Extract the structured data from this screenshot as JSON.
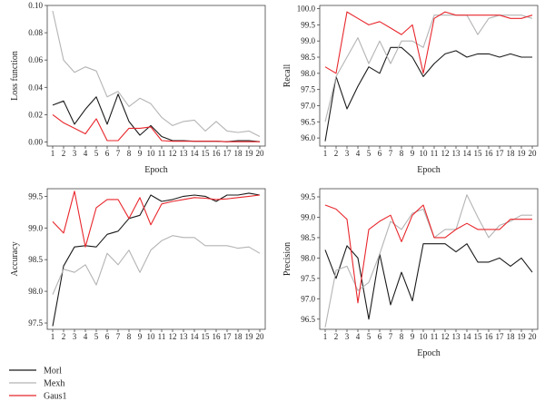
{
  "legend": [
    {
      "name": "Morl",
      "color": "#1a1a1a"
    },
    {
      "name": "Mexh",
      "color": "#b4b4b4"
    },
    {
      "name": "Gaus1",
      "color": "#e8262b"
    }
  ],
  "chart_data": [
    {
      "type": "line",
      "xlabel": "Epoch",
      "ylabel": "Loss function",
      "x": [
        1,
        2,
        3,
        4,
        5,
        6,
        7,
        8,
        9,
        10,
        11,
        12,
        13,
        14,
        15,
        16,
        17,
        18,
        19,
        20
      ],
      "xlim": [
        0.5,
        20.5
      ],
      "ylim": [
        -0.003,
        0.1
      ],
      "yticks": [
        0.0,
        0.02,
        0.04,
        0.06,
        0.08,
        0.1
      ],
      "ytick_labels": [
        "0.00",
        "0.02",
        "0.04",
        "0.06",
        "0.08",
        "0.10"
      ],
      "series": [
        {
          "name": "Morl",
          "values": [
            0.027,
            0.03,
            0.013,
            0.024,
            0.033,
            0.013,
            0.035,
            0.015,
            0.005,
            0.012,
            0.004,
            0.001,
            0.001,
            0.0005,
            0.0005,
            0.0005,
            0.0002,
            0.001,
            0.001,
            0.0002
          ]
        },
        {
          "name": "Mexh",
          "values": [
            0.096,
            0.06,
            0.051,
            0.055,
            0.052,
            0.033,
            0.037,
            0.026,
            0.032,
            0.028,
            0.018,
            0.012,
            0.015,
            0.016,
            0.008,
            0.015,
            0.008,
            0.007,
            0.008,
            0.004
          ]
        },
        {
          "name": "Gaus1",
          "values": [
            0.02,
            0.014,
            0.01,
            0.006,
            0.017,
            0.001,
            0.001,
            0.01,
            0.01,
            0.011,
            0.001,
            0.0005,
            0.0005,
            0.0005,
            0.0005,
            0.0005,
            0.0002,
            0.0002,
            0.0002,
            0.0002
          ]
        }
      ]
    },
    {
      "type": "line",
      "xlabel": "Epoch",
      "ylabel": "Recall",
      "x": [
        1,
        2,
        3,
        4,
        5,
        6,
        7,
        8,
        9,
        10,
        11,
        12,
        13,
        14,
        15,
        16,
        17,
        18,
        19,
        20
      ],
      "xlim": [
        0.5,
        20.5
      ],
      "ylim": [
        95.75,
        100.1
      ],
      "yticks": [
        96.0,
        96.5,
        97.0,
        97.5,
        98.0,
        98.5,
        99.0,
        99.5,
        100.0
      ],
      "ytick_labels": [
        "96.0",
        "96.5",
        "97.0",
        "97.5",
        "98.0",
        "98.5",
        "99.0",
        "99.5",
        "100.0"
      ],
      "series": [
        {
          "name": "Morl",
          "values": [
            95.9,
            97.9,
            96.9,
            97.6,
            98.2,
            98.0,
            98.8,
            98.8,
            98.5,
            97.9,
            98.3,
            98.6,
            98.7,
            98.5,
            98.6,
            98.6,
            98.5,
            98.6,
            98.5,
            98.5
          ]
        },
        {
          "name": "Mexh",
          "values": [
            96.5,
            97.9,
            98.5,
            99.1,
            98.3,
            99.0,
            98.3,
            99.0,
            99.0,
            98.8,
            99.8,
            99.8,
            99.8,
            99.8,
            99.2,
            99.7,
            99.8,
            99.8,
            99.8,
            99.7
          ]
        },
        {
          "name": "Gaus1",
          "values": [
            98.2,
            98.0,
            99.9,
            99.7,
            99.5,
            99.6,
            99.4,
            99.2,
            99.5,
            98.0,
            99.7,
            99.9,
            99.8,
            99.8,
            99.8,
            99.8,
            99.8,
            99.7,
            99.7,
            99.8
          ]
        }
      ]
    },
    {
      "type": "line",
      "xlabel": "",
      "ylabel": "Accuracy",
      "x": [
        1,
        2,
        3,
        4,
        5,
        6,
        7,
        8,
        9,
        10,
        11,
        12,
        13,
        14,
        15,
        16,
        17,
        18,
        19,
        20
      ],
      "xlim": [
        0.5,
        20.5
      ],
      "ylim": [
        97.4,
        99.62
      ],
      "yticks": [
        97.5,
        98.0,
        98.5,
        99.0,
        99.5
      ],
      "ytick_labels": [
        "97.5",
        "98.0",
        "98.5",
        "99.0",
        "99.5"
      ],
      "series": [
        {
          "name": "Morl",
          "values": [
            97.45,
            98.4,
            98.7,
            98.72,
            98.7,
            98.9,
            98.95,
            99.15,
            99.2,
            99.52,
            99.42,
            99.45,
            99.5,
            99.52,
            99.5,
            99.42,
            99.52,
            99.52,
            99.55,
            99.52
          ]
        },
        {
          "name": "Mexh",
          "values": [
            97.95,
            98.35,
            98.3,
            98.42,
            98.1,
            98.6,
            98.42,
            98.65,
            98.3,
            98.65,
            98.8,
            98.88,
            98.85,
            98.85,
            98.72,
            98.72,
            98.72,
            98.68,
            98.7,
            98.6
          ]
        },
        {
          "name": "Gaus1",
          "values": [
            99.1,
            98.92,
            99.58,
            98.7,
            99.32,
            99.45,
            99.45,
            99.15,
            99.48,
            99.05,
            99.38,
            99.42,
            99.45,
            99.48,
            99.47,
            99.45,
            99.46,
            99.48,
            99.5,
            99.52
          ]
        }
      ]
    },
    {
      "type": "line",
      "xlabel": "Epoch",
      "ylabel": "Precision",
      "x": [
        1,
        2,
        3,
        4,
        5,
        6,
        7,
        8,
        9,
        10,
        11,
        12,
        13,
        14,
        15,
        16,
        17,
        18,
        19,
        20
      ],
      "xlim": [
        0.5,
        20.5
      ],
      "ylim": [
        96.25,
        99.7
      ],
      "yticks": [
        96.5,
        97.0,
        97.5,
        98.0,
        98.5,
        99.0,
        99.5
      ],
      "ytick_labels": [
        "96.5",
        "97.0",
        "97.5",
        "98.0",
        "98.5",
        "99.0",
        "99.5"
      ],
      "series": [
        {
          "name": "Morl",
          "values": [
            98.2,
            97.5,
            98.3,
            98.0,
            96.5,
            98.1,
            96.85,
            97.65,
            96.95,
            98.35,
            98.35,
            98.35,
            98.15,
            98.35,
            97.9,
            97.9,
            98.0,
            97.8,
            98.0,
            97.65
          ]
        },
        {
          "name": "Mexh",
          "values": [
            96.3,
            97.7,
            97.8,
            97.2,
            97.4,
            98.1,
            98.9,
            98.7,
            99.1,
            99.2,
            98.5,
            98.7,
            98.7,
            99.55,
            99.0,
            98.5,
            98.8,
            98.9,
            99.05,
            99.05
          ]
        },
        {
          "name": "Gaus1",
          "values": [
            99.3,
            99.2,
            98.95,
            96.9,
            98.7,
            98.9,
            99.05,
            98.4,
            99.05,
            99.3,
            98.5,
            98.5,
            98.7,
            98.85,
            98.7,
            98.7,
            98.7,
            98.95,
            98.95,
            98.95
          ]
        }
      ]
    }
  ]
}
